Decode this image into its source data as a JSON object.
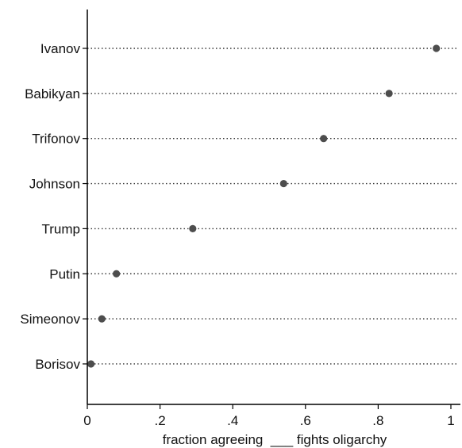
{
  "chart_data": {
    "type": "dot",
    "categories": [
      "Ivanov",
      "Babikyan",
      "Trifonov",
      "Johnson",
      "Trump",
      "Putin",
      "Simeonov",
      "Borisov"
    ],
    "values": [
      0.96,
      0.83,
      0.65,
      0.54,
      0.29,
      0.08,
      0.04,
      0.01
    ],
    "xlabel": "fraction agreeing  ___ fights oligarchy",
    "xlim": [
      0,
      1
    ],
    "xticks": [
      0,
      0.2,
      0.4,
      0.6,
      0.8,
      1
    ],
    "xtick_labels": [
      "0",
      ".2",
      ".4",
      ".6",
      ".8",
      "1"
    ],
    "grid": "dotted guide lines per category",
    "colors": {
      "marker": "#4d4d4d",
      "guide": "#333333",
      "axis": "#000000"
    }
  }
}
